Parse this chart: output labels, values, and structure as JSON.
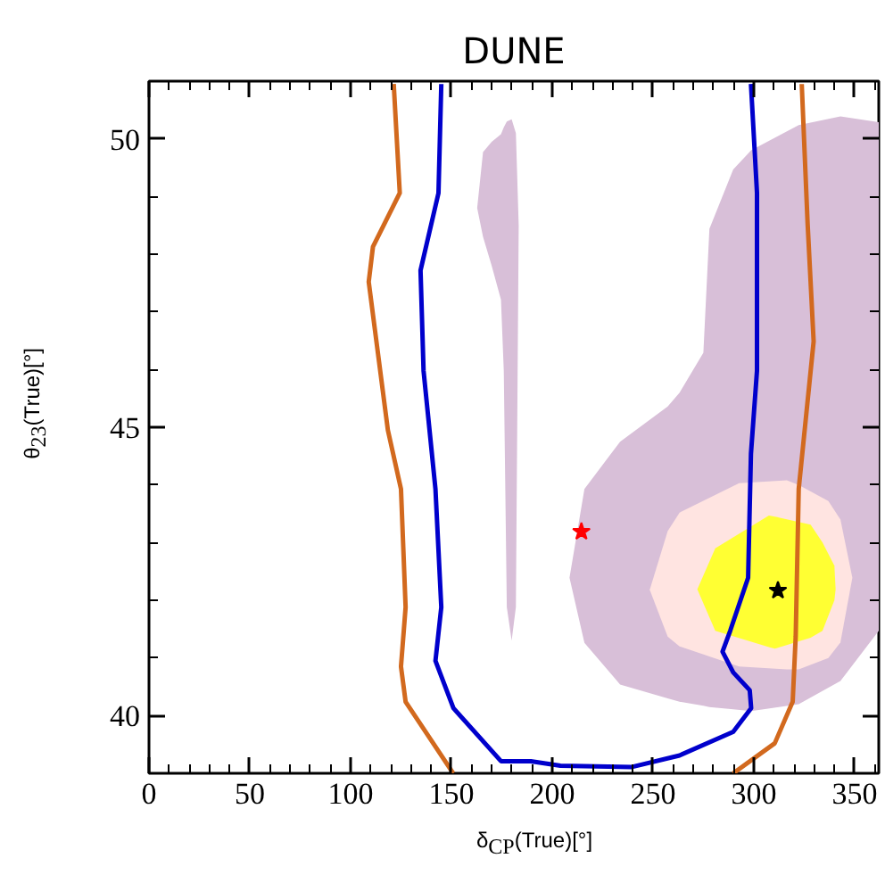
{
  "chart_data": {
    "type": "area",
    "title": "DUNE",
    "xlabel": "δ$_{CP}$(True)[°]",
    "ylabel": "θ$_{23}$(True)[°]",
    "xlim": [
      0,
      362
    ],
    "ylim": [
      39,
      51
    ],
    "xticks": [
      0,
      50,
      100,
      150,
      200,
      250,
      300,
      350
    ],
    "yticks": [
      40,
      45,
      50
    ],
    "series": [
      {
        "color": "#d8bfd8",
        "x": [
          208.6,
          216,
          233.7,
          257.3,
          263.2,
          275,
          278,
          289.8,
          298.7,
          322.3,
          343,
          362,
          362,
          343,
          322.3,
          298.7,
          289.8,
          278,
          275,
          263.2,
          257.3,
          233.7,
          216
        ],
        "values": [
          42.39,
          43.93,
          44.75,
          45.36,
          45.6,
          46.29,
          48.44,
          49.47,
          49.8,
          50.24,
          50.39,
          50.29,
          41.47,
          40.6,
          40.2,
          40.08,
          40.11,
          40.15,
          40.17,
          40.24,
          40.3,
          40.54,
          41.26
        ]
      },
      {
        "color": "#d8bfd8",
        "x": [
          162.8,
          165.7,
          170,
          174.6,
          176,
          177.5,
          179.9,
          182,
          183.4,
          182,
          179.9,
          177.5,
          176,
          174.6,
          170,
          165.7
        ],
        "values": [
          48.8,
          49.77,
          49.95,
          50.08,
          50.2,
          50.3,
          50.34,
          50.1,
          48.5,
          41.88,
          41.3,
          41.88,
          45.98,
          47.21,
          47.8,
          48.3
        ]
      },
      {
        "color": "#ffe4e1",
        "x": [
          248.4,
          257.3,
          263.2,
          292.7,
          316.4,
          322.3,
          337,
          343,
          348.9,
          343,
          337,
          322.3,
          316.4,
          292.7,
          263.2,
          257.3
        ],
        "values": [
          42.18,
          43.2,
          43.52,
          44.03,
          44.08,
          44.0,
          43.72,
          43.4,
          42.39,
          41.27,
          41.0,
          40.8,
          40.8,
          40.85,
          41.2,
          41.37
        ]
      },
      {
        "color": "#ffff33",
        "x": [
          272,
          280.9,
          307.5,
          310.5,
          328.2,
          334.1,
          340,
          340.6,
          340,
          334.1,
          328.2,
          310.5,
          307.5,
          280.9
        ],
        "values": [
          42.19,
          42.9,
          43.47,
          43.45,
          43.31,
          43.0,
          42.6,
          42.19,
          42.0,
          41.47,
          41.35,
          41.16,
          41.19,
          41.47
        ]
      },
      {
        "type": "line",
        "color": "#d2691e",
        "x": [
          121.4,
          124.4,
          111.1,
          109,
          118.5,
          125,
          127.3,
          125,
          127.3,
          150.9
        ],
        "values": [
          50.95,
          49.06,
          48.13,
          47.52,
          44.95,
          43.93,
          41.88,
          40.85,
          40.24,
          39.0
        ]
      },
      {
        "type": "line",
        "color": "#d2691e",
        "x": [
          289.8,
          310.4,
          319.3,
          320.8,
          322.3,
          329.7,
          326.7,
          323.8
        ],
        "values": [
          39.0,
          39.52,
          40.24,
          41.37,
          43.93,
          46.49,
          48.54,
          50.95
        ]
      },
      {
        "type": "line",
        "color": "#0000cc",
        "x": [
          145,
          143.6,
          134.7,
          136.2,
          142.1,
          145,
          142.1,
          151,
          174.6,
          189.4,
          204.1,
          239.6,
          263.2,
          289.8,
          298.7,
          298,
          289.8,
          284.5,
          288.3,
          297.2,
          298.6,
          301.6,
          301.6,
          298.6
        ],
        "values": [
          50.95,
          49.06,
          47.72,
          45.98,
          43.93,
          41.88,
          40.95,
          40.13,
          39.21,
          39.21,
          39.13,
          39.11,
          39.31,
          39.72,
          40.13,
          40.44,
          40.75,
          41.11,
          41.47,
          42.39,
          44.54,
          45.98,
          49.06,
          50.95
        ]
      },
      {
        "type": "scatter",
        "marker": "star",
        "color": "#ff0000",
        "x": [
          214.5
        ],
        "values": [
          43.19
        ]
      },
      {
        "type": "scatter",
        "marker": "star",
        "color": "#000000",
        "x": [
          312
        ],
        "values": [
          42.17
        ]
      }
    ]
  }
}
